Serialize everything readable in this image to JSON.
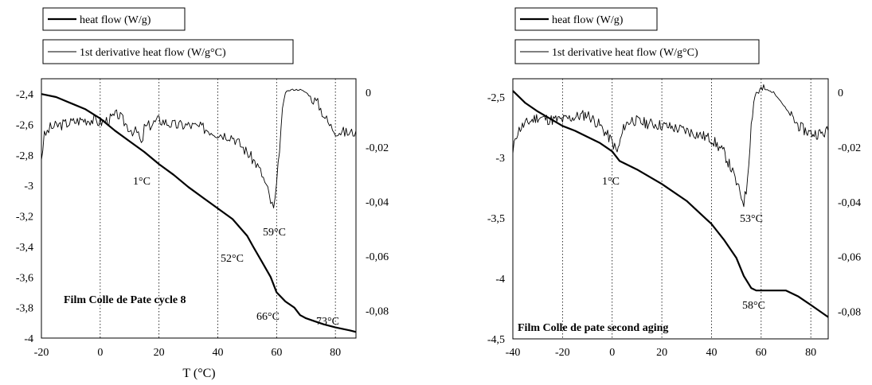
{
  "chart_data": [
    {
      "type": "line",
      "title": "Film Colle de Pate cycle 8",
      "xlabel": "T (°C)",
      "xlim": [
        -20,
        87
      ],
      "xticks": [
        "-20",
        "0",
        "20",
        "40",
        "60",
        "80"
      ],
      "ylim_left": [
        -4,
        -2.3
      ],
      "yticks_left": [
        "-2,4",
        "-2,6",
        "-2,8",
        "-3",
        "-3,2",
        "-3,4",
        "-3,6",
        "-3,8",
        "-4"
      ],
      "ylim_right": [
        -0.09,
        0.005
      ],
      "yticks_right": [
        "0",
        "-0,02",
        "-0,04",
        "-0,06",
        "-0,08"
      ],
      "grid": "vertical dotted",
      "legend": {
        "placement": "top-left",
        "entries": [
          "heat flow (W/g)",
          "1st derivative heat flow (W/g°C)"
        ]
      },
      "annotations": [
        "1°C",
        "59°C",
        "52°C",
        "66°C",
        "73°C"
      ],
      "series": [
        {
          "name": "heat flow (W/g)",
          "axis": "left",
          "width": 2.2,
          "x": [
            -20,
            -15,
            -10,
            -5,
            0,
            5,
            10,
            15,
            20,
            25,
            30,
            35,
            40,
            45,
            50,
            52,
            55,
            58,
            60,
            63,
            66,
            68,
            70,
            73,
            76,
            80,
            85,
            87
          ],
          "y": [
            -2.4,
            -2.42,
            -2.46,
            -2.5,
            -2.56,
            -2.64,
            -2.71,
            -2.78,
            -2.86,
            -2.93,
            -3.01,
            -3.08,
            -3.15,
            -3.22,
            -3.33,
            -3.4,
            -3.5,
            -3.6,
            -3.7,
            -3.76,
            -3.8,
            -3.85,
            -3.87,
            -3.89,
            -3.91,
            -3.93,
            -3.95,
            -3.96
          ]
        },
        {
          "name": "1st derivative heat flow (W/g°C)",
          "axis": "right",
          "width": 0.9,
          "noisy": true,
          "seed": 3,
          "x": [
            -20,
            -19,
            -17,
            -14,
            -10,
            -6,
            -3,
            0,
            3,
            6,
            9,
            11,
            13,
            14,
            15,
            17,
            20,
            25,
            30,
            35,
            40,
            45,
            50,
            53,
            55,
            57,
            58,
            59,
            60,
            61,
            62,
            63,
            65,
            68,
            70,
            72,
            74,
            76,
            78,
            80,
            85,
            87
          ],
          "y": [
            -0.024,
            -0.016,
            -0.013,
            -0.012,
            -0.011,
            -0.01,
            -0.01,
            -0.011,
            -0.01,
            -0.008,
            -0.012,
            -0.014,
            -0.015,
            -0.02,
            -0.013,
            -0.012,
            -0.01,
            -0.012,
            -0.012,
            -0.013,
            -0.015,
            -0.016,
            -0.022,
            -0.026,
            -0.03,
            -0.036,
            -0.04,
            -0.043,
            -0.035,
            -0.02,
            -0.006,
            0.0,
            0.001,
            0.001,
            0.0,
            -0.002,
            -0.004,
            -0.008,
            -0.012,
            -0.014,
            -0.015,
            -0.014
          ]
        }
      ]
    },
    {
      "type": "line",
      "title": "Film Colle de pate second aging",
      "xlabel": "",
      "xlim": [
        -40,
        87
      ],
      "xticks": [
        "-40",
        "-20",
        "0",
        "20",
        "40",
        "60",
        "80"
      ],
      "ylim_left": [
        -4.5,
        -2.35
      ],
      "yticks_left": [
        "-2,5",
        "-3",
        "-3,5",
        "-4",
        "-4,5"
      ],
      "ylim_right": [
        -0.09,
        0.005
      ],
      "yticks_right": [
        "0",
        "-0,02",
        "-0,04",
        "-0,06",
        "-0,08"
      ],
      "grid": "vertical dotted",
      "legend": {
        "placement": "top-left",
        "entries": [
          "heat flow (W/g)",
          "1st derivative heat flow (W/g°C)"
        ]
      },
      "annotations": [
        "1°C",
        "53°C",
        "58°C"
      ],
      "series": [
        {
          "name": "heat flow (W/g)",
          "axis": "left",
          "width": 2.2,
          "x": [
            -40,
            -35,
            -30,
            -25,
            -20,
            -15,
            -10,
            -5,
            0,
            3,
            10,
            20,
            30,
            40,
            45,
            50,
            53,
            56,
            58,
            60,
            65,
            70,
            75,
            80,
            87
          ],
          "y": [
            -2.45,
            -2.55,
            -2.62,
            -2.68,
            -2.74,
            -2.78,
            -2.83,
            -2.88,
            -2.95,
            -3.03,
            -3.1,
            -3.22,
            -3.36,
            -3.55,
            -3.68,
            -3.83,
            -3.98,
            -4.08,
            -4.1,
            -4.1,
            -4.1,
            -4.1,
            -4.15,
            -4.22,
            -4.32
          ]
        },
        {
          "name": "1st derivative heat flow (W/g°C)",
          "axis": "right",
          "width": 0.9,
          "noisy": true,
          "seed": 11,
          "x": [
            -40,
            -39,
            -37,
            -34,
            -30,
            -25,
            -20,
            -15,
            -10,
            -5,
            0,
            2,
            5,
            8,
            12,
            20,
            30,
            40,
            45,
            48,
            50,
            52,
            53,
            54,
            55,
            56,
            57,
            58,
            60,
            62,
            65,
            67,
            70,
            73,
            76,
            80,
            85,
            87
          ],
          "y": [
            -0.023,
            -0.016,
            -0.013,
            -0.011,
            -0.009,
            -0.01,
            -0.01,
            -0.009,
            -0.008,
            -0.012,
            -0.018,
            -0.022,
            -0.012,
            -0.01,
            -0.011,
            -0.012,
            -0.014,
            -0.017,
            -0.022,
            -0.028,
            -0.033,
            -0.038,
            -0.04,
            -0.036,
            -0.025,
            -0.012,
            -0.003,
            0.0,
            0.001,
            0.001,
            0.0,
            -0.002,
            -0.006,
            -0.01,
            -0.013,
            -0.015,
            -0.015,
            -0.014
          ]
        }
      ]
    }
  ]
}
